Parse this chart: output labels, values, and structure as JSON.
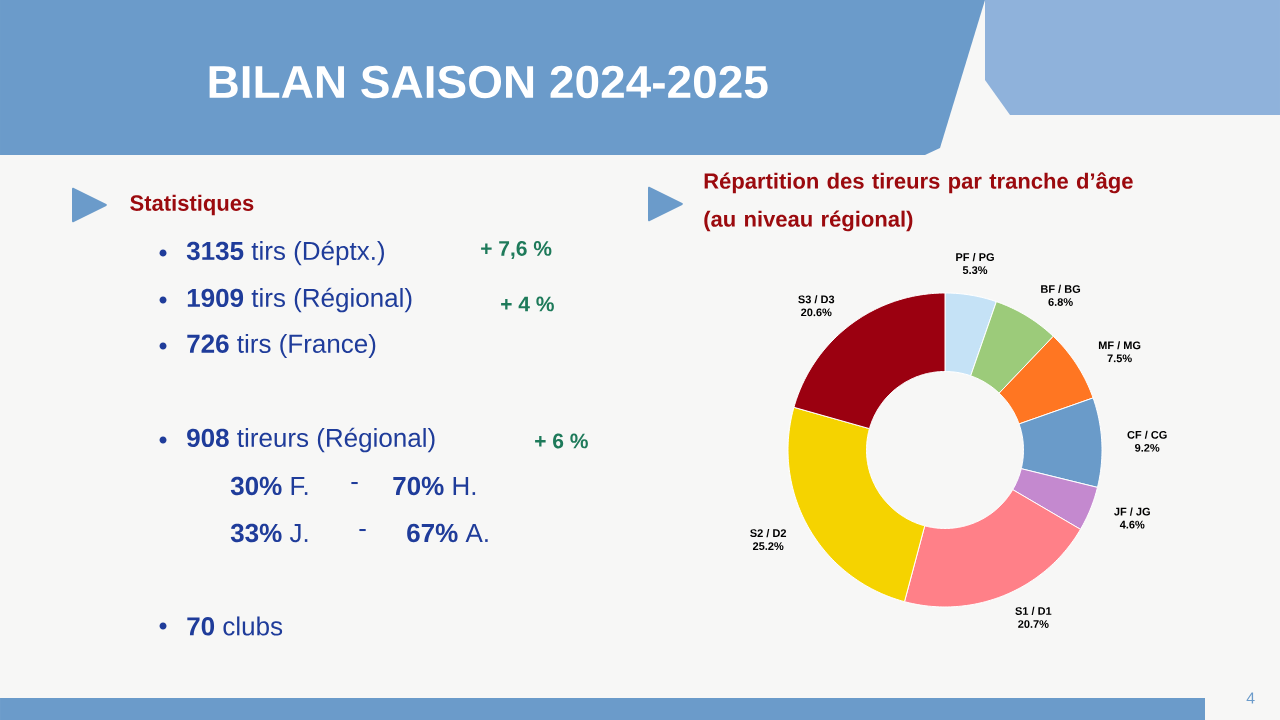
{
  "chart_data": [
    {
      "type": "other",
      "title": "BILAN SAISON 2024-2025",
      "subtitle": "Statistiques",
      "annotations": [
        "**3135** tirs (Déptx.)",
        "+ 7,6 %",
        "**1909** tirs (Régional)",
        "+ 4 %",
        "**726** tirs (France)",
        "**908** tireurs (Régional)",
        "+ 6 %",
        "**30%** F.",
        "-",
        "**70%** H.",
        "**33%** J.",
        "-",
        "**67%** A.",
        "**70** clubs",
        "4"
      ]
    },
    {
      "type": "donut",
      "title": "Répartition des tireurs par tranche d’âge (au niveau régional)",
      "categories": [
        "PF / PG",
        "BF / BG",
        "MF / MG",
        "CF / CG",
        "JF / JG",
        "S1 / D1",
        "S2 / D2",
        "S3 / D3"
      ],
      "values": [
        5.3,
        6.8,
        7.5,
        9.2,
        4.6,
        20.7,
        25.2,
        20.6
      ],
      "colors": [
        "#c5e2f6",
        "#9ccb7a",
        "#ff7622",
        "#6a9bc9",
        "#c489cf",
        "#ff8088",
        "#f5d300",
        "#9b0010"
      ],
      "value_labels": [
        "5.3%",
        "6.8%",
        "7.5%",
        "9.2%",
        "4.6%",
        "20.7%",
        "25.2%",
        "20.6%"
      ]
    }
  ]
}
